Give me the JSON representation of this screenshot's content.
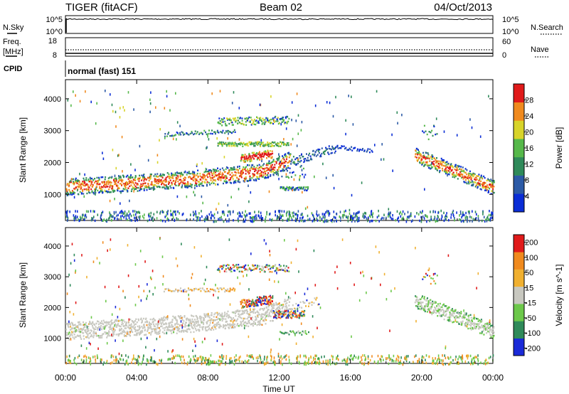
{
  "header": {
    "radar": "TIGER (fitACF)",
    "beam": "Beam 02",
    "date": "04/Oct/2013"
  },
  "strip_nsky": {
    "left_label": "N.Sky",
    "right_label": "N.Search",
    "left_ticks": [
      "10^5",
      "10^0"
    ],
    "right_ticks": [
      "10^5",
      "10^0"
    ]
  },
  "strip_freq": {
    "left_label_line1": "Freq.",
    "left_label_line2": "[MHz]",
    "right_label": "Nave",
    "left_ticks": [
      "18",
      "8"
    ],
    "right_ticks": [
      "60",
      "0"
    ]
  },
  "cpid": {
    "label": "CPID",
    "value": "normal (fast) 151"
  },
  "x_axis": {
    "label": "Time UT",
    "ticks": [
      "00:00",
      "04:00",
      "08:00",
      "12:00",
      "16:00",
      "20:00",
      "00:00"
    ],
    "range_hours": [
      0,
      24
    ]
  },
  "chart_data": [
    {
      "type": "heatmap",
      "quantity": "Power",
      "ylabel": "Slant Range [km]",
      "ylim": [
        180,
        4600
      ],
      "yticks": [
        "1000",
        "2000",
        "3000",
        "4000"
      ],
      "ytick_values": [
        1000,
        2000,
        3000,
        4000
      ],
      "colorbar": {
        "label": "Power [dB]",
        "ticks": [
          "4",
          "8",
          "12",
          "16",
          "20",
          "24",
          "28"
        ],
        "range": [
          0,
          32
        ],
        "colors": [
          "#0a2dd6",
          "#2c5aa6",
          "#2f8a5a",
          "#56b84a",
          "#d8d42a",
          "#f08a1e",
          "#e01a1a"
        ]
      }
    },
    {
      "type": "heatmap",
      "quantity": "Velocity",
      "ylabel": "Slant Range [km]",
      "ylim": [
        180,
        4600
      ],
      "yticks": [
        "1000",
        "2000",
        "3000",
        "4000"
      ],
      "ytick_values": [
        1000,
        2000,
        3000,
        4000
      ],
      "colorbar": {
        "label": "Velocity [m s^-1]",
        "ticks": [
          "200",
          "100",
          "50",
          "15",
          "-15",
          "-50",
          "-100",
          "-200"
        ],
        "colors": [
          "#1a2ad8",
          "#2f8a5a",
          "#6cc84a",
          "#c8c8c0",
          "#f0b030",
          "#f08a1e",
          "#e01a1a"
        ]
      }
    }
  ]
}
